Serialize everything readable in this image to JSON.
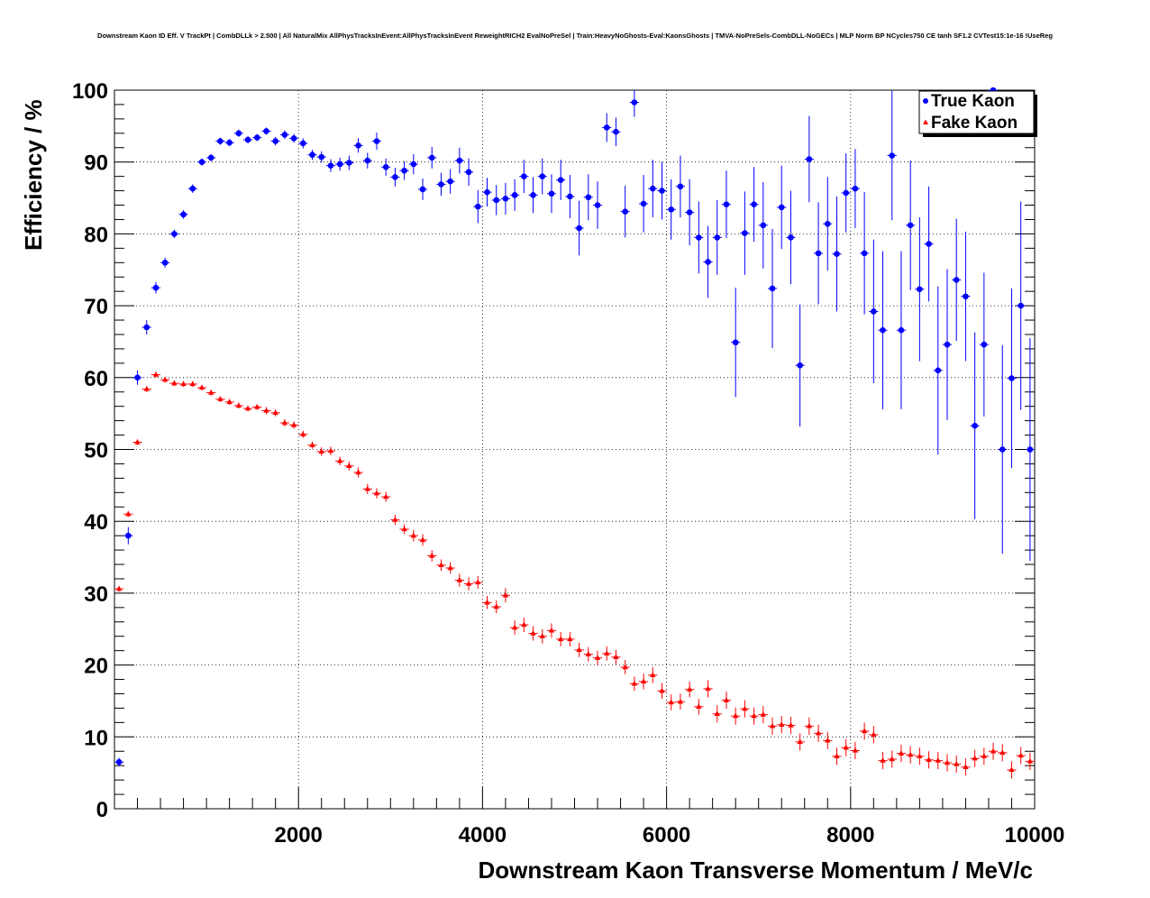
{
  "chart_data": {
    "type": "scatter",
    "title": "Downstream Kaon ID Eff. V TrackPt | CombDLLk > 2.500 | All NaturalMix AllPhysTracksInEvent:AllPhysTracksInEvent ReweightRICH2 EvalNoPreSel | Train:HeavyNoGhosts-Eval:KaonsGhosts | TMVA-NoPreSels-CombDLL-NoGECs | MLP Norm BP NCycles750 CE tanh SF1.2 CVTest15:1e-16 !UseReg",
    "xlabel": "Downstream Kaon Transverse Momentum / MeV/c",
    "ylabel": "Efficiency / %",
    "xlim": [
      0,
      10000
    ],
    "ylim": [
      0,
      100
    ],
    "xticks": [
      2000,
      4000,
      6000,
      8000,
      10000
    ],
    "yticks": [
      0,
      10,
      20,
      30,
      40,
      50,
      60,
      70,
      80,
      90,
      100
    ],
    "grid": true,
    "legend_position": "top-right",
    "bin_width": 100,
    "series": [
      {
        "name": "True Kaon",
        "color": "#0000ff",
        "marker": "circle",
        "x": [
          50,
          150,
          250,
          350,
          450,
          550,
          650,
          750,
          850,
          950,
          1050,
          1150,
          1250,
          1350,
          1450,
          1550,
          1650,
          1750,
          1850,
          1950,
          2050,
          2150,
          2250,
          2350,
          2450,
          2550,
          2650,
          2750,
          2850,
          2950,
          3050,
          3150,
          3250,
          3350,
          3450,
          3550,
          3650,
          3750,
          3850,
          3950,
          4050,
          4150,
          4250,
          4350,
          4450,
          4550,
          4650,
          4750,
          4850,
          4950,
          5050,
          5150,
          5250,
          5350,
          5450,
          5550,
          5650,
          5750,
          5850,
          5950,
          6050,
          6150,
          6250,
          6350,
          6450,
          6550,
          6650,
          6750,
          6850,
          6950,
          7050,
          7150,
          7250,
          7350,
          7450,
          7550,
          7650,
          7750,
          7850,
          7950,
          8050,
          8150,
          8250,
          8350,
          8450,
          8550,
          8650,
          8750,
          8850,
          8950,
          9050,
          9150,
          9250,
          9350,
          9450,
          9550,
          9650,
          9750,
          9850,
          9950
        ],
        "y": [
          6.5,
          38,
          60,
          67,
          72.5,
          76,
          80,
          82.7,
          86.3,
          90,
          90.6,
          92.9,
          92.7,
          94,
          93.1,
          93.4,
          94.3,
          92.9,
          93.8,
          93.3,
          92.6,
          91,
          90.7,
          89.5,
          89.7,
          89.9,
          92.3,
          90.2,
          92.9,
          89.3,
          87.9,
          88.8,
          89.7,
          86.2,
          90.6,
          86.9,
          87.3,
          90.2,
          88.6,
          83.8,
          85.8,
          84.7,
          84.9,
          85.4,
          88,
          85.4,
          88,
          85.6,
          87.5,
          85.2,
          80.8,
          85.1,
          84,
          94.8,
          94.2,
          83.1,
          98.3,
          84.2,
          86.3,
          86,
          83.4,
          86.6,
          83,
          79.5,
          76.1,
          79.5,
          84.1,
          64.9,
          80.1,
          84.1,
          81.2,
          72.4,
          83.7,
          79.5,
          61.7,
          90.4,
          77.3,
          81.4,
          77.2,
          85.7,
          86.3,
          77.3,
          69.2,
          66.6,
          90.9,
          66.6,
          81.2,
          72.3,
          78.6,
          61,
          64.6,
          73.6,
          71.3,
          53.3,
          64.6,
          100,
          50,
          59.9,
          70,
          50
        ],
        "yerr": [
          0.6,
          1.2,
          1,
          1,
          0.8,
          0.7,
          0.6,
          0.6,
          0.6,
          0.5,
          0.5,
          0.5,
          0.5,
          0.5,
          0.5,
          0.5,
          0.5,
          0.6,
          0.6,
          0.6,
          0.7,
          0.7,
          0.8,
          0.9,
          0.9,
          1,
          1,
          1.1,
          1.2,
          1.2,
          1.3,
          1.3,
          1.4,
          1.5,
          1.5,
          1.6,
          1.7,
          1.8,
          1.9,
          2.3,
          2,
          2.1,
          2.2,
          2.2,
          2.3,
          2.5,
          2.5,
          2.7,
          2.8,
          3,
          3.8,
          3.2,
          3.3,
          2,
          2,
          3.6,
          2,
          4,
          4,
          4,
          4.2,
          4.3,
          4.6,
          5,
          5,
          5.2,
          4.7,
          7.6,
          5.8,
          5.2,
          6,
          8.3,
          5.8,
          6.5,
          8.5,
          6,
          7.1,
          6.5,
          8,
          5.5,
          5.5,
          8.5,
          10,
          11,
          9,
          11,
          9,
          10,
          8,
          11.7,
          10.5,
          8.5,
          9,
          13,
          10,
          0.01,
          14.5,
          12.5,
          14.5,
          15.5
        ]
      },
      {
        "name": "Fake Kaon",
        "color": "#ff0000",
        "marker": "triangle",
        "x": [
          50,
          150,
          250,
          350,
          450,
          550,
          650,
          750,
          850,
          950,
          1050,
          1150,
          1250,
          1350,
          1450,
          1550,
          1650,
          1750,
          1850,
          1950,
          2050,
          2150,
          2250,
          2350,
          2450,
          2550,
          2650,
          2750,
          2850,
          2950,
          3050,
          3150,
          3250,
          3350,
          3450,
          3550,
          3650,
          3750,
          3850,
          3950,
          4050,
          4150,
          4250,
          4350,
          4450,
          4550,
          4650,
          4750,
          4850,
          4950,
          5050,
          5150,
          5250,
          5350,
          5450,
          5550,
          5650,
          5750,
          5850,
          5950,
          6050,
          6150,
          6250,
          6350,
          6450,
          6550,
          6650,
          6750,
          6850,
          6950,
          7050,
          7150,
          7250,
          7350,
          7450,
          7550,
          7650,
          7750,
          7850,
          7950,
          8050,
          8150,
          8250,
          8350,
          8450,
          8550,
          8650,
          8750,
          8850,
          8950,
          9050,
          9150,
          9250,
          9350,
          9450,
          9550,
          9650,
          9750,
          9850,
          9950
        ],
        "y": [
          30.6,
          41,
          51,
          58.4,
          60.4,
          59.7,
          59.2,
          59.1,
          59.1,
          58.6,
          57.9,
          57,
          56.6,
          56.1,
          55.7,
          55.9,
          55.4,
          55.1,
          53.7,
          53.4,
          52.1,
          50.6,
          49.7,
          49.8,
          48.4,
          47.7,
          46.8,
          44.5,
          43.9,
          43.4,
          40.2,
          38.9,
          38,
          37.4,
          35.2,
          33.9,
          33.5,
          31.8,
          31.3,
          31.5,
          28.7,
          28.1,
          29.7,
          25.2,
          25.6,
          24.4,
          24,
          24.8,
          23.6,
          23.6,
          22.1,
          21.5,
          21,
          21.6,
          21.1,
          19.7,
          17.4,
          17.7,
          18.6,
          16.4,
          14.8,
          14.9,
          16.6,
          14.2,
          16.7,
          13.2,
          15.1,
          12.9,
          13.9,
          12.9,
          13.1,
          11.5,
          11.7,
          11.6,
          9.3,
          11.5,
          10.5,
          9.5,
          7.3,
          8.5,
          8.1,
          10.8,
          10.3,
          6.7,
          6.9,
          7.7,
          7.5,
          7.3,
          6.8,
          6.7,
          6.4,
          6.2,
          5.8,
          7,
          7.3,
          8,
          7.8,
          5.4,
          7.4,
          6.6
        ],
        "yerr": [
          0.4,
          0.4,
          0.4,
          0.4,
          0.4,
          0.4,
          0.4,
          0.4,
          0.4,
          0.4,
          0.4,
          0.4,
          0.4,
          0.4,
          0.4,
          0.4,
          0.5,
          0.5,
          0.5,
          0.5,
          0.5,
          0.5,
          0.6,
          0.6,
          0.6,
          0.6,
          0.7,
          0.7,
          0.7,
          0.7,
          0.7,
          0.7,
          0.8,
          0.8,
          0.8,
          0.8,
          0.8,
          0.9,
          0.9,
          0.9,
          0.9,
          0.9,
          1,
          1,
          1,
          1,
          1,
          1,
          1,
          1,
          1,
          1,
          1,
          1,
          1,
          1,
          1,
          1.1,
          1.1,
          1.1,
          1.1,
          1.1,
          1.1,
          1.1,
          1.2,
          1.2,
          1.2,
          1.2,
          1.2,
          1.2,
          1.2,
          1.2,
          1.2,
          1.2,
          1.2,
          1.2,
          1.2,
          1.2,
          1.2,
          1.2,
          1.2,
          1.2,
          1.2,
          1.2,
          1.2,
          1.2,
          1.2,
          1.2,
          1.2,
          1.2,
          1.2,
          1.2,
          1.2,
          1.2,
          1.2,
          1.2,
          1.2,
          1.2,
          1.2,
          1.2
        ]
      }
    ]
  }
}
